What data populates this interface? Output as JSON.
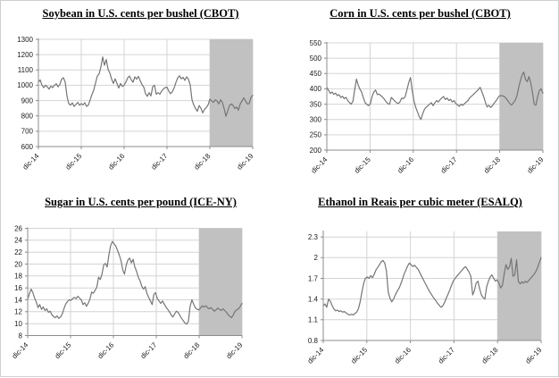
{
  "style": {
    "line_color": "#757575",
    "shade_color": "#c1c1c1",
    "grid_color": "#d4d4d4",
    "axis_color": "#8c8c8c",
    "tick_text_color": "#1a1a1a",
    "title_color": "#000000"
  },
  "chart_data": [
    {
      "type": "line",
      "title": "Soybean in U.S. cents per bushel (CBOT)",
      "x_labels": [
        "dic-14",
        "dic-15",
        "dic-16",
        "dic-17",
        "dic-18",
        "dic-19"
      ],
      "y_ticks": [
        600,
        700,
        800,
        900,
        1000,
        1100,
        1200,
        1300
      ],
      "y_tick_labels": [
        "600",
        "700",
        "800",
        "900",
        "1000",
        "1100",
        "1200",
        "1300"
      ],
      "ylim": [
        600,
        1300
      ],
      "y_plot_max": 1300,
      "grid": true,
      "shaded_region": {
        "from_x_label": "dic-18",
        "to_x_label": "dic-19",
        "from_tick_index": 4
      },
      "values": [
        1020,
        1035,
        1000,
        985,
        1000,
        990,
        975,
        995,
        985,
        1000,
        1010,
        990,
        1005,
        1040,
        1050,
        1020,
        930,
        880,
        870,
        885,
        862,
        875,
        888,
        870,
        880,
        872,
        886,
        862,
        872,
        905,
        940,
        970,
        1015,
        1060,
        1075,
        1120,
        1185,
        1130,
        1168,
        1105,
        1080,
        1040,
        1012,
        1042,
        1012,
        982,
        1012,
        992,
        1000,
        1022,
        1048,
        1060,
        1035,
        1020,
        1055,
        1040,
        1058,
        1030,
        1005,
        988,
        945,
        928,
        952,
        930,
        990,
        1000,
        942,
        952,
        942,
        962,
        975,
        985,
        988,
        962,
        945,
        958,
        982,
        1018,
        1048,
        1062,
        1042,
        1052,
        1032,
        1055,
        1040,
        1002,
        905,
        872,
        848,
        830,
        868,
        850,
        820,
        842,
        855,
        872,
        910,
        898,
        888,
        905,
        898,
        878,
        905,
        888,
        848,
        798,
        832,
        868,
        878,
        868,
        848,
        858,
        838,
        878,
        898,
        918,
        898,
        878,
        880,
        920,
        935
      ]
    },
    {
      "type": "line",
      "title": "Corn in U.S. cents per bushel (CBOT)",
      "x_labels": [
        "dic-14",
        "dic-15",
        "dic-16",
        "dic-17",
        "dic-18",
        "dic-19"
      ],
      "y_ticks": [
        200,
        250,
        300,
        350,
        400,
        450,
        500,
        550
      ],
      "y_tick_labels": [
        "200",
        "250",
        "300",
        "350",
        "400",
        "450",
        "500",
        "550"
      ],
      "ylim": [
        200,
        550
      ],
      "y_plot_max": 550,
      "grid": true,
      "shaded_region": {
        "from_x_label": "dic-18",
        "to_x_label": "dic-19",
        "from_tick_index": 4
      },
      "values": [
        405,
        395,
        385,
        390,
        382,
        386,
        378,
        381,
        372,
        376,
        368,
        372,
        362,
        355,
        350,
        360,
        397,
        432,
        413,
        399,
        389,
        370,
        355,
        349,
        345,
        352,
        375,
        390,
        396,
        381,
        383,
        378,
        373,
        366,
        358,
        352,
        350,
        372,
        366,
        360,
        355,
        352,
        358,
        370,
        368,
        375,
        398,
        420,
        437,
        395,
        360,
        340,
        325,
        310,
        300,
        318,
        333,
        340,
        345,
        350,
        355,
        345,
        355,
        362,
        357,
        365,
        370,
        375,
        365,
        370,
        362,
        366,
        357,
        362,
        352,
        348,
        343,
        350,
        346,
        352,
        357,
        362,
        371,
        376,
        381,
        387,
        392,
        398,
        405,
        390,
        375,
        356,
        341,
        346,
        339,
        345,
        353,
        360,
        369,
        377,
        378,
        377,
        374,
        368,
        360,
        352,
        347,
        354,
        362,
        375,
        402,
        425,
        445,
        455,
        431,
        423,
        440,
        420,
        388,
        350,
        347,
        375,
        395,
        400,
        386
      ]
    },
    {
      "type": "line",
      "title": "Sugar in U.S. cents per pound (ICE-NY)",
      "x_labels": [
        "dic-14",
        "dic-15",
        "dic-16",
        "dic-17",
        "dic-18",
        "dic-19"
      ],
      "y_ticks": [
        8,
        10,
        12,
        14,
        16,
        18,
        20,
        22,
        24,
        26
      ],
      "y_tick_labels": [
        "8",
        "10",
        "12",
        "14",
        "16",
        "18",
        "20",
        "22",
        "24",
        "26"
      ],
      "ylim": [
        8,
        26
      ],
      "y_plot_max": 26,
      "grid": true,
      "shaded_region": {
        "from_x_label": "dic-18",
        "to_x_label": "dic-19",
        "from_tick_index": 4
      },
      "values": [
        14.1,
        15.0,
        15.8,
        15.2,
        14.3,
        13.6,
        12.7,
        13.2,
        12.4,
        12.8,
        12.2,
        12.5,
        11.9,
        12.1,
        11.5,
        11.2,
        11.0,
        11.3,
        10.9,
        11.1,
        11.6,
        12.5,
        13.3,
        13.7,
        14.0,
        13.9,
        14.2,
        14.4,
        14.2,
        14.6,
        14.3,
        14.0,
        13.2,
        13.5,
        12.9,
        13.4,
        14.1,
        15.3,
        15.1,
        15.6,
        16.1,
        17.8,
        17.4,
        18.3,
        19.9,
        20.1,
        19.5,
        21.6,
        23.1,
        23.8,
        23.4,
        23.0,
        22.3,
        21.5,
        20.6,
        19.0,
        18.3,
        19.8,
        20.7,
        21.0,
        20.2,
        20.8,
        19.5,
        18.8,
        17.8,
        17.2,
        16.3,
        15.8,
        16.2,
        15.1,
        14.4,
        13.8,
        13.2,
        14.9,
        15.2,
        14.2,
        13.8,
        13.4,
        13.8,
        13.3,
        12.8,
        12.4,
        12.0,
        11.5,
        11.1,
        11.6,
        12.1,
        11.9,
        11.4,
        10.9,
        10.5,
        10.1,
        9.9,
        10.4,
        12.9,
        14.0,
        13.3,
        12.7,
        12.4,
        12.3,
        12.6,
        13.0,
        12.8,
        13.0,
        12.7,
        12.5,
        12.7,
        12.4,
        12.1,
        12.3,
        12.6,
        12.4,
        12.2,
        12.5,
        12.2,
        11.9,
        11.5,
        11.2,
        11.0,
        11.5,
        12.1,
        12.3,
        12.5,
        12.9,
        13.4
      ]
    },
    {
      "type": "line",
      "title": "Ethanol in Reais per cubic meter (ESALQ)",
      "x_labels": [
        "dic-14",
        "dic-15",
        "dic-16",
        "dic-17",
        "dic-18",
        "dic-19"
      ],
      "y_ticks": [
        0.8,
        1.1,
        1.4,
        1.7,
        2.0,
        2.3
      ],
      "y_tick_labels": [
        "0.8",
        "1.1",
        "1.4",
        "1.7",
        "2",
        "2.3"
      ],
      "ylim": [
        0.8,
        2.3
      ],
      "y_plot_max": 2.38,
      "grid": true,
      "shaded_region": {
        "from_x_label": "dic-18",
        "to_x_label": "dic-19",
        "from_tick_index": 4
      },
      "values": [
        1.3,
        1.33,
        1.28,
        1.4,
        1.37,
        1.31,
        1.26,
        1.23,
        1.24,
        1.22,
        1.23,
        1.21,
        1.22,
        1.2,
        1.18,
        1.17,
        1.18,
        1.17,
        1.19,
        1.21,
        1.26,
        1.36,
        1.5,
        1.63,
        1.7,
        1.72,
        1.7,
        1.74,
        1.71,
        1.76,
        1.82,
        1.86,
        1.9,
        1.94,
        1.96,
        1.92,
        1.8,
        1.5,
        1.41,
        1.36,
        1.4,
        1.46,
        1.51,
        1.55,
        1.61,
        1.68,
        1.76,
        1.82,
        1.88,
        1.92,
        1.9,
        1.87,
        1.89,
        1.86,
        1.83,
        1.78,
        1.73,
        1.68,
        1.63,
        1.58,
        1.53,
        1.49,
        1.45,
        1.41,
        1.38,
        1.34,
        1.31,
        1.28,
        1.3,
        1.35,
        1.41,
        1.47,
        1.53,
        1.6,
        1.66,
        1.7,
        1.73,
        1.76,
        1.79,
        1.82,
        1.85,
        1.87,
        1.83,
        1.79,
        1.73,
        1.46,
        1.52,
        1.63,
        1.66,
        1.55,
        1.46,
        1.42,
        1.4,
        1.58,
        1.66,
        1.72,
        1.75,
        1.7,
        1.66,
        1.68,
        1.63,
        1.56,
        1.6,
        1.77,
        1.9,
        1.83,
        1.87,
        1.99,
        1.73,
        1.75,
        1.97,
        1.66,
        1.62,
        1.65,
        1.63,
        1.66,
        1.64,
        1.67,
        1.7,
        1.73,
        1.76,
        1.8,
        1.86,
        1.93,
        2.0
      ]
    }
  ]
}
